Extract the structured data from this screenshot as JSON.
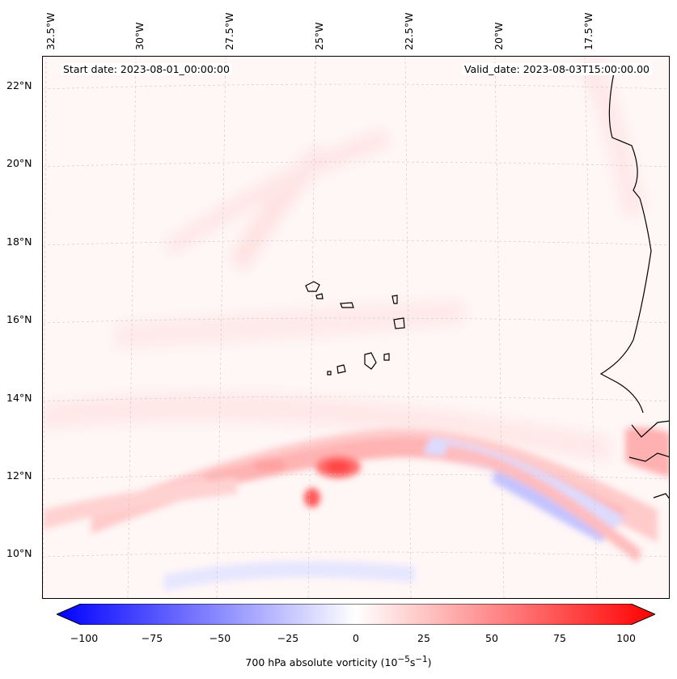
{
  "map": {
    "start_date": "Start date: 2023-08-01_00:00:00",
    "valid_date": "Valid_date: 2023-08-03T15:00:00.00",
    "lon_labels": [
      "32.5°W",
      "30°W",
      "27.5°W",
      "25°W",
      "22.5°W",
      "20°W",
      "17.5°W"
    ],
    "lat_labels": [
      "22°N",
      "20°N",
      "18°N",
      "16°N",
      "14°N",
      "12°N",
      "10°N"
    ],
    "field": "700 hPa absolute vorticity"
  },
  "colorbar": {
    "ticks": [
      "−100",
      "−75",
      "−50",
      "−25",
      "0",
      "25",
      "50",
      "75",
      "100"
    ],
    "label": "700 hPa absolute vorticity (10",
    "unit_sup1": "−5",
    "unit_mid": "s",
    "unit_sup2": "−1",
    "unit_end": ")",
    "min_color": "#0000ff",
    "max_color": "#ff0000",
    "min": -100,
    "max": 100
  }
}
